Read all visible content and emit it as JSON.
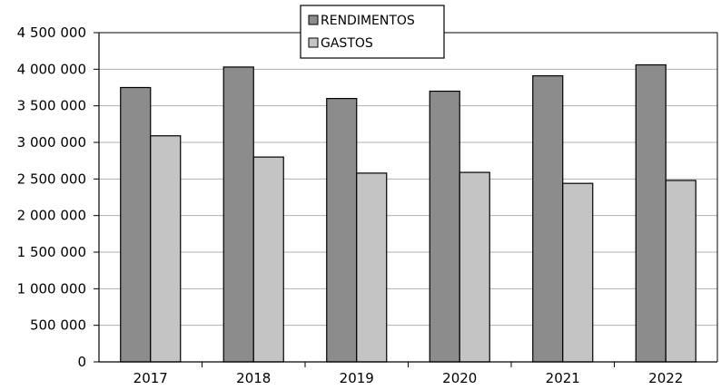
{
  "chart_data": {
    "type": "bar",
    "categories": [
      "2017",
      "2018",
      "2019",
      "2020",
      "2021",
      "2022"
    ],
    "series": [
      {
        "name": "RENDIMENTOS",
        "values": [
          3750000,
          4030000,
          3600000,
          3700000,
          3910000,
          4060000
        ],
        "color": "#8c8c8c"
      },
      {
        "name": "GASTOS",
        "values": [
          3090000,
          2800000,
          2580000,
          2590000,
          2440000,
          2480000
        ],
        "color": "#c4c4c4"
      }
    ],
    "ylim": [
      0,
      4500000
    ],
    "yticks": [
      0,
      500000,
      1000000,
      1500000,
      2000000,
      2500000,
      3000000,
      3500000,
      4000000,
      4500000
    ],
    "ytick_labels": [
      "0",
      "500 000",
      "1 000 000",
      "1 500 000",
      "2 000 000",
      "2 500 000",
      "3 000 000",
      "3 500 000",
      "4 000 000",
      "4 500 000"
    ],
    "grid": true,
    "legend_position": "top-center",
    "title": "",
    "xlabel": "",
    "ylabel": ""
  }
}
